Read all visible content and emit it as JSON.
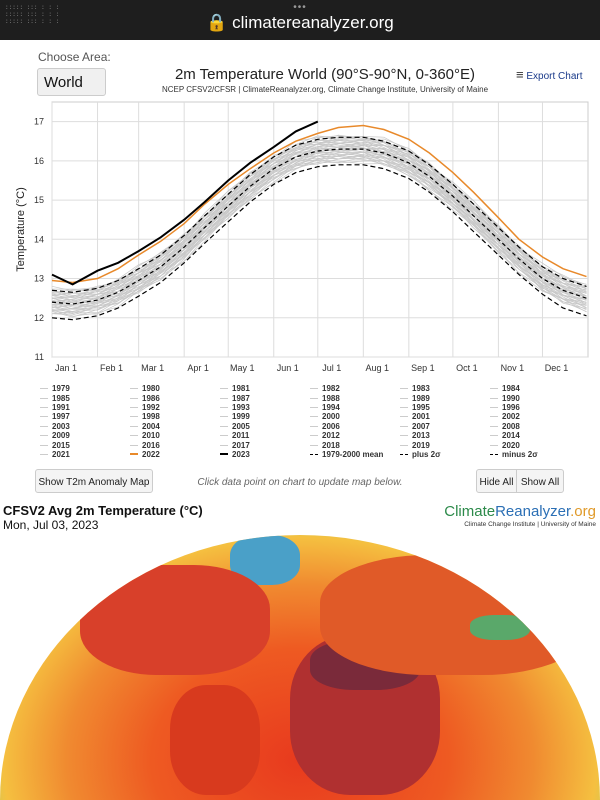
{
  "browser": {
    "url": "climatereanalyzer.org",
    "lock_icon": "lock-icon"
  },
  "controls": {
    "choose_area_label": "Choose Area:",
    "area_value": "World",
    "export_label": "Export Chart",
    "menu_icon": "hamburger-icon"
  },
  "chart_data": {
    "type": "line",
    "title": "2m Temperature World (90°S-90°N, 0-360°E)",
    "subtitle": "NCEP CFSV2/CFSR | ClimateReanalyzer.org, Climate Change Institute, University of Maine",
    "ylabel": "Temperature (°C)",
    "ylim": [
      11,
      17.5
    ],
    "yticks": [
      "11",
      "12",
      "13",
      "14",
      "15",
      "16",
      "17"
    ],
    "xticks": [
      "Jan 1",
      "Feb 1",
      "Mar 1",
      "Apr 1",
      "May 1",
      "Jun 1",
      "Jul 1",
      "Aug 1",
      "Sep 1",
      "Oct 1",
      "Nov 1",
      "Dec 1"
    ],
    "grid": true,
    "x_days": [
      1,
      15,
      32,
      46,
      60,
      75,
      91,
      105,
      121,
      136,
      152,
      167,
      182,
      196,
      213,
      227,
      244,
      258,
      274,
      288,
      305,
      319,
      335,
      349,
      365
    ],
    "series": [
      {
        "name": "1979-2000 mean",
        "color": "#000000",
        "dash": "4,3",
        "values": [
          12.4,
          12.35,
          12.45,
          12.65,
          12.95,
          13.3,
          13.8,
          14.3,
          14.85,
          15.35,
          15.8,
          16.1,
          16.25,
          16.3,
          16.3,
          16.2,
          15.95,
          15.6,
          15.1,
          14.6,
          14.0,
          13.5,
          13.0,
          12.7,
          12.5
        ]
      },
      {
        "name": "plus 2σ",
        "color": "#000000",
        "dash": "5,3",
        "values": [
          12.7,
          12.65,
          12.75,
          12.95,
          13.25,
          13.6,
          14.1,
          14.6,
          15.15,
          15.65,
          16.1,
          16.4,
          16.55,
          16.6,
          16.6,
          16.5,
          16.25,
          15.9,
          15.4,
          14.9,
          14.3,
          13.8,
          13.3,
          13.0,
          12.8
        ]
      },
      {
        "name": "minus 2σ",
        "color": "#000000",
        "dash": "5,3",
        "values": [
          12.0,
          11.95,
          12.05,
          12.25,
          12.55,
          12.9,
          13.4,
          13.9,
          14.45,
          14.95,
          15.4,
          15.7,
          15.85,
          15.9,
          15.9,
          15.8,
          15.55,
          15.2,
          14.7,
          14.2,
          13.6,
          13.1,
          12.6,
          12.25,
          12.05
        ]
      },
      {
        "name": "2022",
        "color": "#e8892a",
        "values": [
          12.95,
          12.9,
          13.0,
          13.25,
          13.6,
          13.95,
          14.4,
          14.9,
          15.4,
          15.8,
          16.2,
          16.5,
          16.7,
          16.85,
          16.9,
          16.8,
          16.55,
          16.2,
          15.7,
          15.2,
          14.55,
          14.0,
          13.55,
          13.25,
          13.05
        ]
      },
      {
        "name": "2023",
        "color": "#000000",
        "values": [
          13.1,
          12.85,
          13.2,
          13.4,
          13.7,
          14.05,
          14.5,
          14.95,
          15.5,
          15.95,
          16.35,
          16.75,
          17.0
        ]
      }
    ],
    "legend": [
      "1979",
      "1980",
      "1981",
      "1982",
      "1983",
      "1984",
      "1985",
      "1986",
      "1987",
      "1988",
      "1989",
      "1990",
      "1991",
      "1992",
      "1993",
      "1994",
      "1995",
      "1996",
      "1997",
      "1998",
      "1999",
      "2000",
      "2001",
      "2002",
      "2003",
      "2004",
      "2005",
      "2006",
      "2007",
      "2008",
      "2009",
      "2010",
      "2011",
      "2012",
      "2013",
      "2014",
      "2015",
      "2016",
      "2017",
      "2018",
      "2019",
      "2020",
      "2021",
      "2022",
      "2023",
      "1979-2000 mean",
      "plus 2σ",
      "minus 2σ"
    ]
  },
  "actions": {
    "anomaly_map": "Show T2m Anomaly Map",
    "hint": "Click data point on chart to update map below.",
    "hide_all": "Hide All",
    "show_all": "Show All"
  },
  "map": {
    "title": "CFSV2 Avg 2m Temperature (°C)",
    "date": "Mon, Jul 03, 2023",
    "logo_a": "Climate",
    "logo_b": "Reanalyzer",
    ".org": ".org",
    "logo_c": ".org",
    "logo_sub": "Climate Change Institute | University of Maine"
  }
}
